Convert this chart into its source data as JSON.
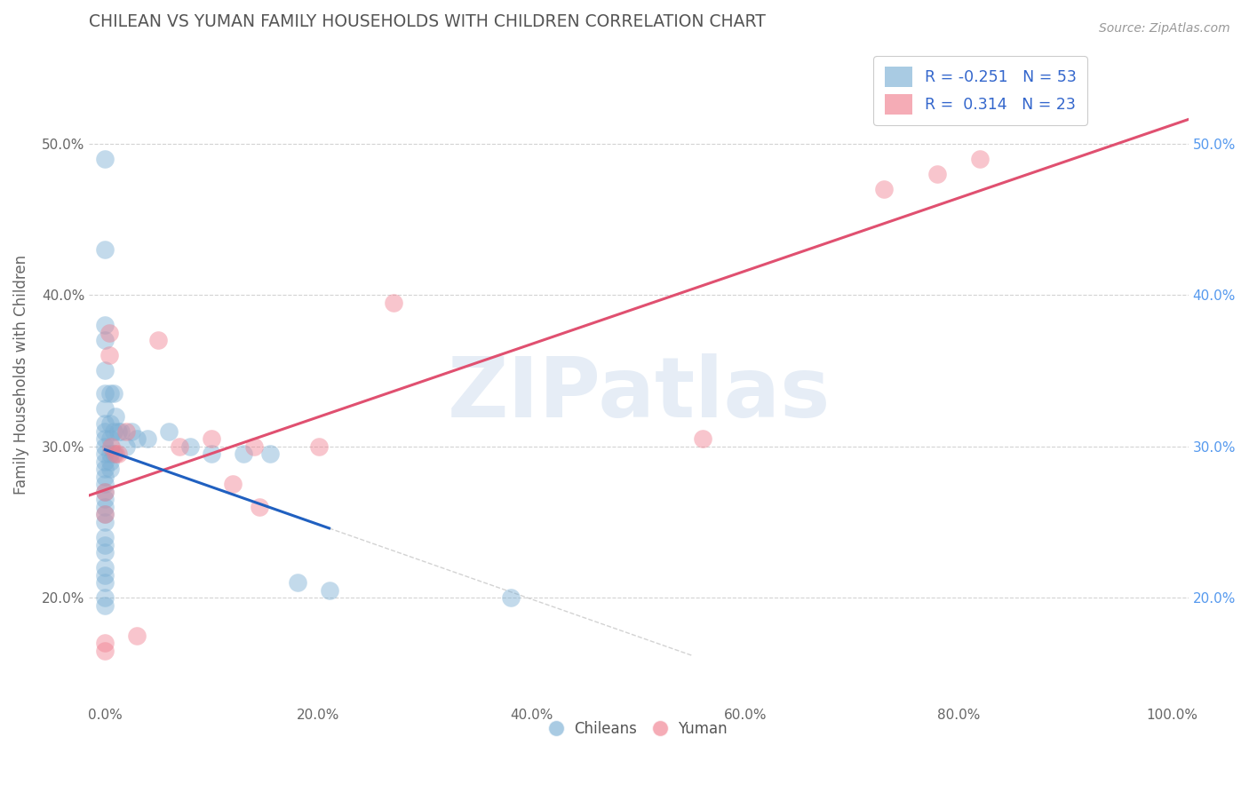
{
  "title": "CHILEAN VS YUMAN FAMILY HOUSEHOLDS WITH CHILDREN CORRELATION CHART",
  "source": "Source: ZipAtlas.com",
  "xlabel_ticks": [
    "0.0%",
    "20.0%",
    "40.0%",
    "60.0%",
    "80.0%",
    "100.0%"
  ],
  "ylabel": "Family Households with Children",
  "xlim": [
    -0.015,
    1.015
  ],
  "ylim": [
    0.13,
    0.565
  ],
  "ytick_vals": [
    0.2,
    0.3,
    0.4,
    0.5
  ],
  "ytick_labels": [
    "20.0%",
    "30.0%",
    "40.0%",
    "50.0%"
  ],
  "xtick_vals": [
    0.0,
    0.2,
    0.4,
    0.6,
    0.8,
    1.0
  ],
  "chilean_points": [
    [
      0.0,
      0.49
    ],
    [
      0.0,
      0.43
    ],
    [
      0.0,
      0.38
    ],
    [
      0.0,
      0.37
    ],
    [
      0.0,
      0.35
    ],
    [
      0.0,
      0.335
    ],
    [
      0.0,
      0.325
    ],
    [
      0.0,
      0.315
    ],
    [
      0.0,
      0.31
    ],
    [
      0.0,
      0.305
    ],
    [
      0.0,
      0.3
    ],
    [
      0.0,
      0.295
    ],
    [
      0.0,
      0.29
    ],
    [
      0.0,
      0.285
    ],
    [
      0.0,
      0.28
    ],
    [
      0.0,
      0.275
    ],
    [
      0.0,
      0.27
    ],
    [
      0.0,
      0.265
    ],
    [
      0.0,
      0.26
    ],
    [
      0.0,
      0.255
    ],
    [
      0.0,
      0.25
    ],
    [
      0.0,
      0.24
    ],
    [
      0.0,
      0.235
    ],
    [
      0.0,
      0.23
    ],
    [
      0.0,
      0.22
    ],
    [
      0.0,
      0.215
    ],
    [
      0.0,
      0.21
    ],
    [
      0.0,
      0.2
    ],
    [
      0.0,
      0.195
    ],
    [
      0.005,
      0.335
    ],
    [
      0.005,
      0.315
    ],
    [
      0.005,
      0.305
    ],
    [
      0.005,
      0.295
    ],
    [
      0.005,
      0.29
    ],
    [
      0.005,
      0.285
    ],
    [
      0.008,
      0.335
    ],
    [
      0.008,
      0.31
    ],
    [
      0.008,
      0.295
    ],
    [
      0.01,
      0.32
    ],
    [
      0.012,
      0.31
    ],
    [
      0.015,
      0.31
    ],
    [
      0.02,
      0.3
    ],
    [
      0.025,
      0.31
    ],
    [
      0.03,
      0.305
    ],
    [
      0.04,
      0.305
    ],
    [
      0.06,
      0.31
    ],
    [
      0.08,
      0.3
    ],
    [
      0.1,
      0.295
    ],
    [
      0.13,
      0.295
    ],
    [
      0.155,
      0.295
    ],
    [
      0.18,
      0.21
    ],
    [
      0.21,
      0.205
    ],
    [
      0.38,
      0.2
    ]
  ],
  "yuman_points": [
    [
      0.0,
      0.17
    ],
    [
      0.0,
      0.165
    ],
    [
      0.0,
      0.255
    ],
    [
      0.0,
      0.27
    ],
    [
      0.004,
      0.375
    ],
    [
      0.004,
      0.36
    ],
    [
      0.006,
      0.3
    ],
    [
      0.01,
      0.295
    ],
    [
      0.012,
      0.295
    ],
    [
      0.02,
      0.31
    ],
    [
      0.03,
      0.175
    ],
    [
      0.05,
      0.37
    ],
    [
      0.07,
      0.3
    ],
    [
      0.1,
      0.305
    ],
    [
      0.12,
      0.275
    ],
    [
      0.14,
      0.3
    ],
    [
      0.145,
      0.26
    ],
    [
      0.2,
      0.3
    ],
    [
      0.27,
      0.395
    ],
    [
      0.56,
      0.305
    ],
    [
      0.73,
      0.47
    ],
    [
      0.78,
      0.48
    ],
    [
      0.82,
      0.49
    ]
  ],
  "chilean_color": "#7bafd4",
  "yuman_color": "#f08090",
  "chilean_trend_color": "#2060c0",
  "yuman_trend_color": "#e05070",
  "chilean_trend_x_end": 0.21,
  "watermark_text": "ZIPatlas",
  "bg_color": "#ffffff",
  "grid_color": "#c8c8c8",
  "legend1_label1": "R = -0.251   N = 53",
  "legend1_label2": "R =  0.314   N = 23",
  "legend2_label1": "Chileans",
  "legend2_label2": "Yuman"
}
